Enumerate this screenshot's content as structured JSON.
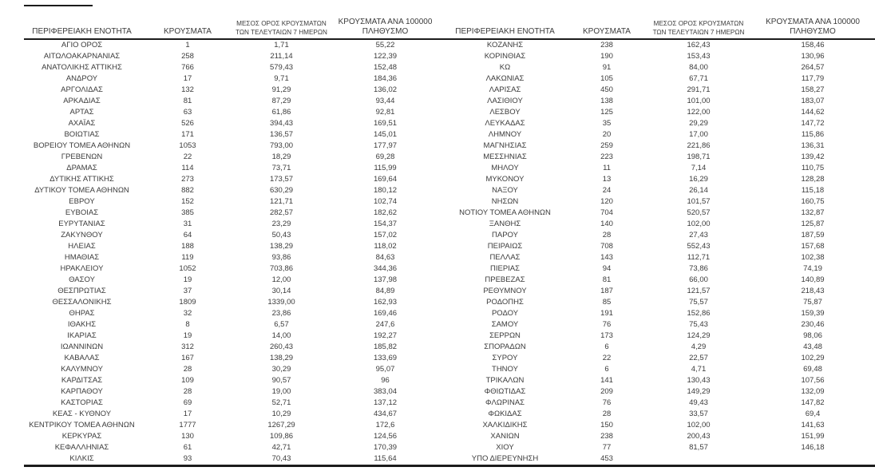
{
  "page": {
    "background_color": "#ffffff",
    "text_color": "#3b3b3b",
    "rule_color": "#1c1c1c"
  },
  "headers": {
    "region": "ΠΕΡΙΦΕΡΕΙΑΚΗ ΕΝΟΤΗΤΑ",
    "cases": "ΚΡΟΥΣΜΑΤΑ",
    "avg7_line1": "ΜΕΣΟΣ ΟΡΟΣ ΚΡΟΥΣΜΑΤΩΝ",
    "avg7_line2": "ΤΩΝ ΤΕΛΕΥΤΑΙΩΝ 7 ΗΜΕΡΩΝ",
    "per100k_line1": "ΚΡΟΥΣΜΑΤΑ ΑΝΑ 100000",
    "per100k_line2": "ΠΛΗΘΥΣΜΟ"
  },
  "tables": {
    "left": {
      "rows": [
        [
          "ΑΓΙΟ ΟΡΟΣ",
          "1",
          "1,71",
          "55,22"
        ],
        [
          "ΑΙΤΩΛΟΑΚΑΡΝΑΝΙΑΣ",
          "258",
          "211,14",
          "122,39"
        ],
        [
          "ΑΝΑΤΟΛΙΚΗΣ ΑΤΤΙΚΗΣ",
          "766",
          "579,43",
          "152,48"
        ],
        [
          "ΑΝΔΡΟΥ",
          "17",
          "9,71",
          "184,36"
        ],
        [
          "ΑΡΓΟΛΙΔΑΣ",
          "132",
          "91,29",
          "136,02"
        ],
        [
          "ΑΡΚΑΔΙΑΣ",
          "81",
          "87,29",
          "93,44"
        ],
        [
          "ΑΡΤΑΣ",
          "63",
          "61,86",
          "92,81"
        ],
        [
          "ΑΧΑΪΑΣ",
          "526",
          "394,43",
          "169,51"
        ],
        [
          "ΒΟΙΩΤΙΑΣ",
          "171",
          "136,57",
          "145,01"
        ],
        [
          "ΒΟΡΕΙΟΥ ΤΟΜΕΑ ΑΘΗΝΩΝ",
          "1053",
          "793,00",
          "177,97"
        ],
        [
          "ΓΡΕΒΕΝΩΝ",
          "22",
          "18,29",
          "69,28"
        ],
        [
          "ΔΡΑΜΑΣ",
          "114",
          "73,71",
          "115,99"
        ],
        [
          "ΔΥΤΙΚΗΣ ΑΤΤΙΚΗΣ",
          "273",
          "173,57",
          "169,64"
        ],
        [
          "ΔΥΤΙΚΟΥ ΤΟΜΕΑ ΑΘΗΝΩΝ",
          "882",
          "630,29",
          "180,12"
        ],
        [
          "ΕΒΡΟΥ",
          "152",
          "121,71",
          "102,74"
        ],
        [
          "ΕΥΒΟΙΑΣ",
          "385",
          "282,57",
          "182,62"
        ],
        [
          "ΕΥΡΥΤΑΝΙΑΣ",
          "31",
          "23,29",
          "154,37"
        ],
        [
          "ΖΑΚΥΝΘΟΥ",
          "64",
          "50,43",
          "157,02"
        ],
        [
          "ΗΛΕΙΑΣ",
          "188",
          "138,29",
          "118,02"
        ],
        [
          "ΗΜΑΘΙΑΣ",
          "119",
          "93,86",
          "84,63"
        ],
        [
          "ΗΡΑΚΛΕΙΟΥ",
          "1052",
          "703,86",
          "344,36"
        ],
        [
          "ΘΑΣΟΥ",
          "19",
          "12,00",
          "137,98"
        ],
        [
          "ΘΕΣΠΡΩΤΙΑΣ",
          "37",
          "30,14",
          "84,89"
        ],
        [
          "ΘΕΣΣΑΛΟΝΙΚΗΣ",
          "1809",
          "1339,00",
          "162,93"
        ],
        [
          "ΘΗΡΑΣ",
          "32",
          "23,86",
          "169,46"
        ],
        [
          "ΙΘΑΚΗΣ",
          "8",
          "6,57",
          "247,6"
        ],
        [
          "ΙΚΑΡΙΑΣ",
          "19",
          "14,00",
          "192,27"
        ],
        [
          "ΙΩΑΝΝΙΝΩΝ",
          "312",
          "260,43",
          "185,82"
        ],
        [
          "ΚΑΒΑΛΑΣ",
          "167",
          "138,29",
          "133,69"
        ],
        [
          "ΚΑΛΥΜΝΟΥ",
          "28",
          "30,29",
          "95,07"
        ],
        [
          "ΚΑΡΔΙΤΣΑΣ",
          "109",
          "90,57",
          "96"
        ],
        [
          "ΚΑΡΠΑΘΟΥ",
          "28",
          "19,00",
          "383,04"
        ],
        [
          "ΚΑΣΤΟΡΙΑΣ",
          "69",
          "52,71",
          "137,12"
        ],
        [
          "ΚΕΑΣ - ΚΥΘΝΟΥ",
          "17",
          "10,29",
          "434,67"
        ],
        [
          "ΚΕΝΤΡΙΚΟΥ ΤΟΜΕΑ ΑΘΗΝΩΝ",
          "1777",
          "1267,29",
          "172,6"
        ],
        [
          "ΚΕΡΚΥΡΑΣ",
          "130",
          "109,86",
          "124,56"
        ],
        [
          "ΚΕΦΑΛΛΗΝΙΑΣ",
          "61",
          "42,71",
          "170,39"
        ],
        [
          "ΚΙΛΚΙΣ",
          "93",
          "70,43",
          "115,64"
        ]
      ]
    },
    "right": {
      "rows": [
        [
          "ΚΟΖΑΝΗΣ",
          "238",
          "162,43",
          "158,46"
        ],
        [
          "ΚΟΡΙΝΘΙΑΣ",
          "190",
          "153,43",
          "130,96"
        ],
        [
          "ΚΩ",
          "91",
          "84,00",
          "264,57"
        ],
        [
          "ΛΑΚΩΝΙΑΣ",
          "105",
          "67,71",
          "117,79"
        ],
        [
          "ΛΑΡΙΣΑΣ",
          "450",
          "291,71",
          "158,27"
        ],
        [
          "ΛΑΣΙΘΙΟΥ",
          "138",
          "101,00",
          "183,07"
        ],
        [
          "ΛΕΣΒΟΥ",
          "125",
          "122,00",
          "144,62"
        ],
        [
          "ΛΕΥΚΑΔΑΣ",
          "35",
          "29,29",
          "147,72"
        ],
        [
          "ΛΗΜΝΟΥ",
          "20",
          "17,00",
          "115,86"
        ],
        [
          "ΜΑΓΝΗΣΙΑΣ",
          "259",
          "221,86",
          "136,31"
        ],
        [
          "ΜΕΣΣΗΝΙΑΣ",
          "223",
          "198,71",
          "139,42"
        ],
        [
          "ΜΗΛΟΥ",
          "11",
          "7,14",
          "110,75"
        ],
        [
          "ΜΥΚΟΝΟΥ",
          "13",
          "16,29",
          "128,28"
        ],
        [
          "ΝΑΞΟΥ",
          "24",
          "26,14",
          "115,18"
        ],
        [
          "ΝΗΣΩΝ",
          "120",
          "101,57",
          "160,75"
        ],
        [
          "ΝΟΤΙΟΥ ΤΟΜΕΑ ΑΘΗΝΩΝ",
          "704",
          "520,57",
          "132,87"
        ],
        [
          "ΞΑΝΘΗΣ",
          "140",
          "102,00",
          "125,87"
        ],
        [
          "ΠΑΡΟΥ",
          "28",
          "27,43",
          "187,59"
        ],
        [
          "ΠΕΙΡΑΙΩΣ",
          "708",
          "552,43",
          "157,68"
        ],
        [
          "ΠΕΛΛΑΣ",
          "143",
          "112,71",
          "102,38"
        ],
        [
          "ΠΙΕΡΙΑΣ",
          "94",
          "73,86",
          "74,19"
        ],
        [
          "ΠΡΕΒΕΖΑΣ",
          "81",
          "66,00",
          "140,89"
        ],
        [
          "ΡΕΘΥΜΝΟΥ",
          "187",
          "121,57",
          "218,43"
        ],
        [
          "ΡΟΔΟΠΗΣ",
          "85",
          "75,57",
          "75,87"
        ],
        [
          "ΡΟΔΟΥ",
          "191",
          "152,86",
          "159,39"
        ],
        [
          "ΣΑΜΟΥ",
          "76",
          "75,43",
          "230,46"
        ],
        [
          "ΣΕΡΡΩΝ",
          "173",
          "124,29",
          "98,06"
        ],
        [
          "ΣΠΟΡΑΔΩΝ",
          "6",
          "4,29",
          "43,48"
        ],
        [
          "ΣΥΡΟΥ",
          "22",
          "22,57",
          "102,29"
        ],
        [
          "ΤΗΝΟΥ",
          "6",
          "4,71",
          "69,48"
        ],
        [
          "ΤΡΙΚΑΛΩΝ",
          "141",
          "130,43",
          "107,56"
        ],
        [
          "ΦΘΙΩΤΙΔΑΣ",
          "209",
          "149,29",
          "132,09"
        ],
        [
          "ΦΛΩΡΙΝΑΣ",
          "76",
          "49,43",
          "147,82"
        ],
        [
          "ΦΩΚΙΔΑΣ",
          "28",
          "33,57",
          "69,4"
        ],
        [
          "ΧΑΛΚΙΔΙΚΗΣ",
          "150",
          "102,00",
          "141,63"
        ],
        [
          "ΧΑΝΙΩΝ",
          "238",
          "200,43",
          "151,99"
        ],
        [
          "ΧΙΟΥ",
          "77",
          "81,57",
          "146,18"
        ],
        [
          "ΥΠΟ ΔΙΕΡΕΥΝΗΣΗ",
          "453",
          "",
          ""
        ]
      ]
    }
  }
}
